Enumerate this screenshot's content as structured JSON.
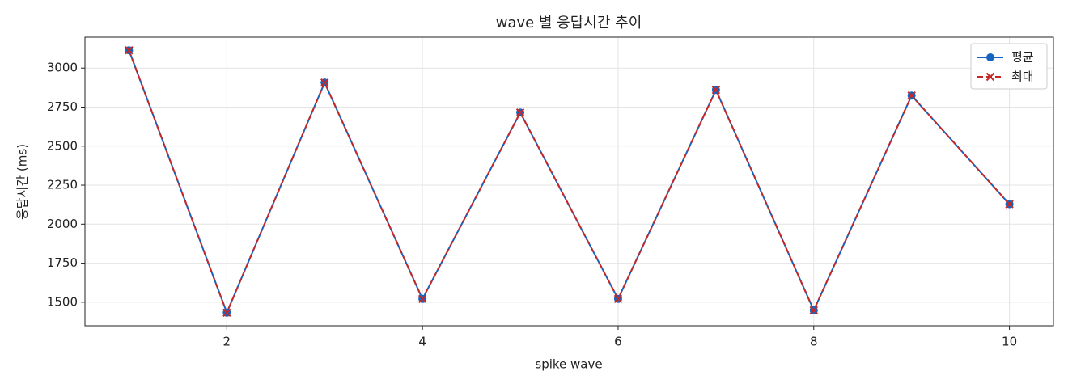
{
  "chart_data": {
    "type": "line",
    "title": "wave 별 응답시간 추이",
    "x_label": "spike wave",
    "y_label": "응답시간 (ms)",
    "x": [
      1,
      2,
      3,
      4,
      5,
      6,
      7,
      8,
      9,
      10
    ],
    "series": [
      {
        "name": "평균",
        "color": "#1565c0",
        "marker": "o",
        "linestyle": "solid",
        "values": [
          3114,
          1433,
          2907,
          1521,
          2715,
          1521,
          2860,
          1448,
          2824,
          2128
        ]
      },
      {
        "name": "최대",
        "color": "#c62828",
        "marker": "x",
        "linestyle": "dashed",
        "values": [
          3114,
          1433,
          2907,
          1521,
          2715,
          1521,
          2860,
          1448,
          2824,
          2128
        ]
      }
    ],
    "xlim": [
      0.55,
      10.45
    ],
    "xticks": [
      2,
      4,
      6,
      8,
      10
    ],
    "ylim": [
      1349,
      3198
    ],
    "yticks": [
      1500,
      1750,
      2000,
      2250,
      2500,
      2750,
      3000
    ],
    "grid": true,
    "legend": "upper right"
  }
}
